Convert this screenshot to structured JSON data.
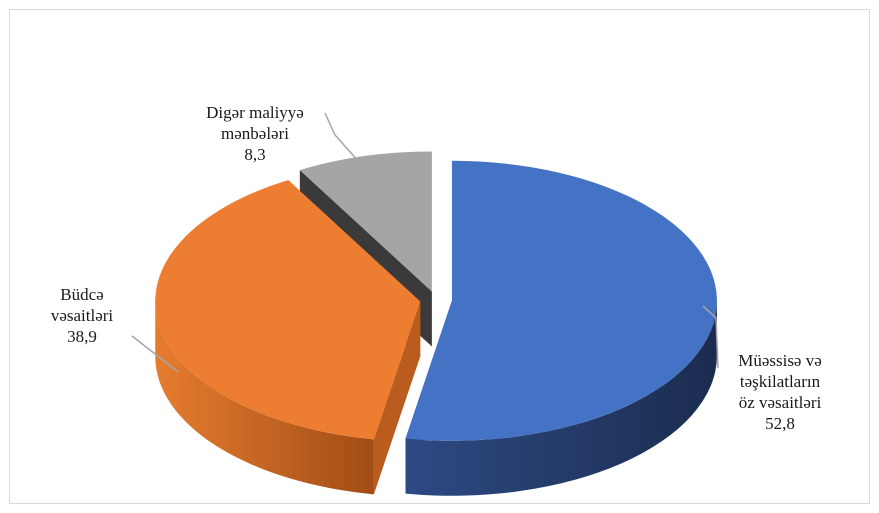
{
  "chart_data": {
    "type": "pie",
    "variant": "3d-exploded",
    "title": "",
    "slices": [
      {
        "label_lines": [
          "Müəssisə və",
          "təşkilatların",
          "öz vəsaitləri"
        ],
        "value": 52.8,
        "value_text": "52,8",
        "color": "#4472c4"
      },
      {
        "label_lines": [
          "Büdcə",
          "vəsaitləri"
        ],
        "value": 38.9,
        "value_text": "38,9",
        "color": "#ed7d31"
      },
      {
        "label_lines": [
          "Digər maliyyə",
          "mənbələri"
        ],
        "value": 8.3,
        "value_text": "8,3",
        "color": "#a5a5a5"
      }
    ]
  }
}
